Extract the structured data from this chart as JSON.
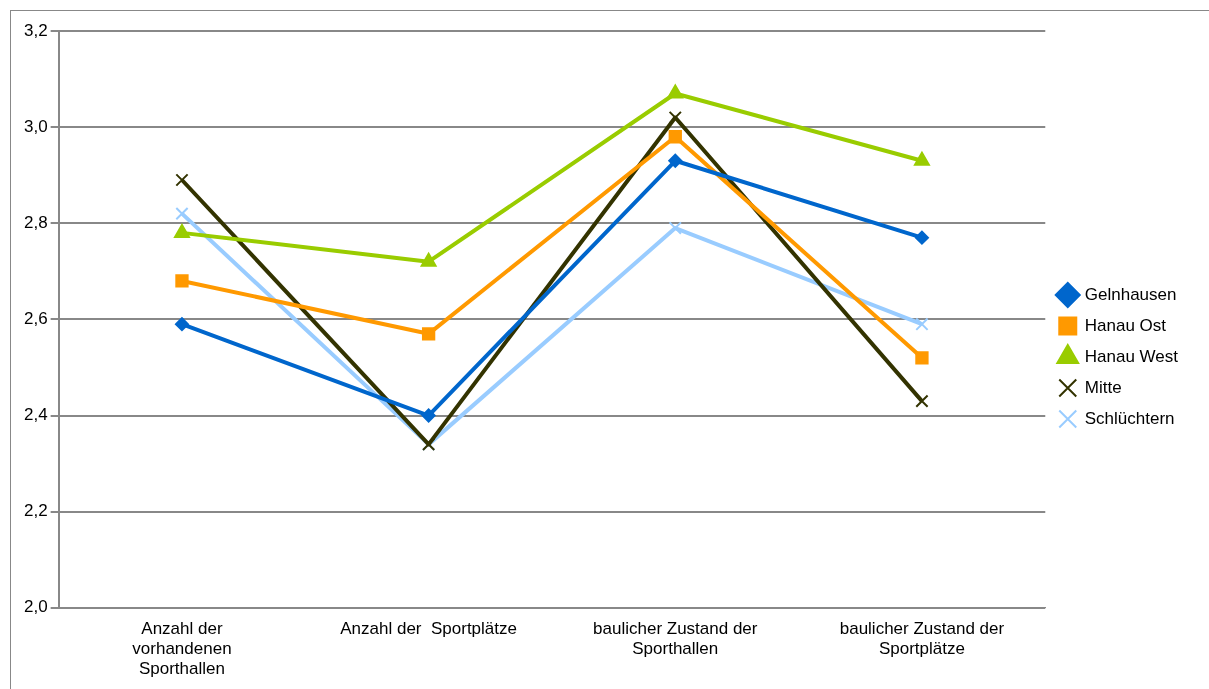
{
  "chart_data": {
    "type": "line",
    "categories": [
      "Anzahl der vorhandenen Sporthallen",
      "Anzahl der  Sportplätze",
      "baulicher Zustand der Sporthallen",
      "baulicher Zustand der Sportplätze"
    ],
    "series": [
      {
        "name": "Gelnhausen",
        "color": "#0066cc",
        "marker": "diamond",
        "values": [
          2.59,
          2.4,
          2.93,
          2.77
        ]
      },
      {
        "name": "Hanau Ost",
        "color": "#ff9900",
        "marker": "square",
        "values": [
          2.68,
          2.57,
          2.98,
          2.52
        ]
      },
      {
        "name": "Hanau West",
        "color": "#99cc00",
        "marker": "triangle",
        "values": [
          2.78,
          2.72,
          3.07,
          2.93
        ]
      },
      {
        "name": "Mitte",
        "color": "#333300",
        "marker": "cross",
        "values": [
          2.89,
          2.34,
          3.02,
          2.43
        ]
      },
      {
        "name": "Schlüchtern",
        "color": "#99ccff",
        "marker": "cross",
        "values": [
          2.82,
          2.34,
          2.79,
          2.59
        ]
      }
    ],
    "ylim": [
      2.0,
      3.2
    ],
    "yticks": [
      {
        "value": 2.0,
        "label": "2,0"
      },
      {
        "value": 2.2,
        "label": "2,2"
      },
      {
        "value": 2.4,
        "label": "2,4"
      },
      {
        "value": 2.6,
        "label": "2,6"
      },
      {
        "value": 2.8,
        "label": "2,8"
      },
      {
        "value": 3.0,
        "label": "3,0"
      },
      {
        "value": 3.2,
        "label": "3,2"
      }
    ],
    "grid": "y",
    "legend": "right",
    "line_style": "solid"
  }
}
